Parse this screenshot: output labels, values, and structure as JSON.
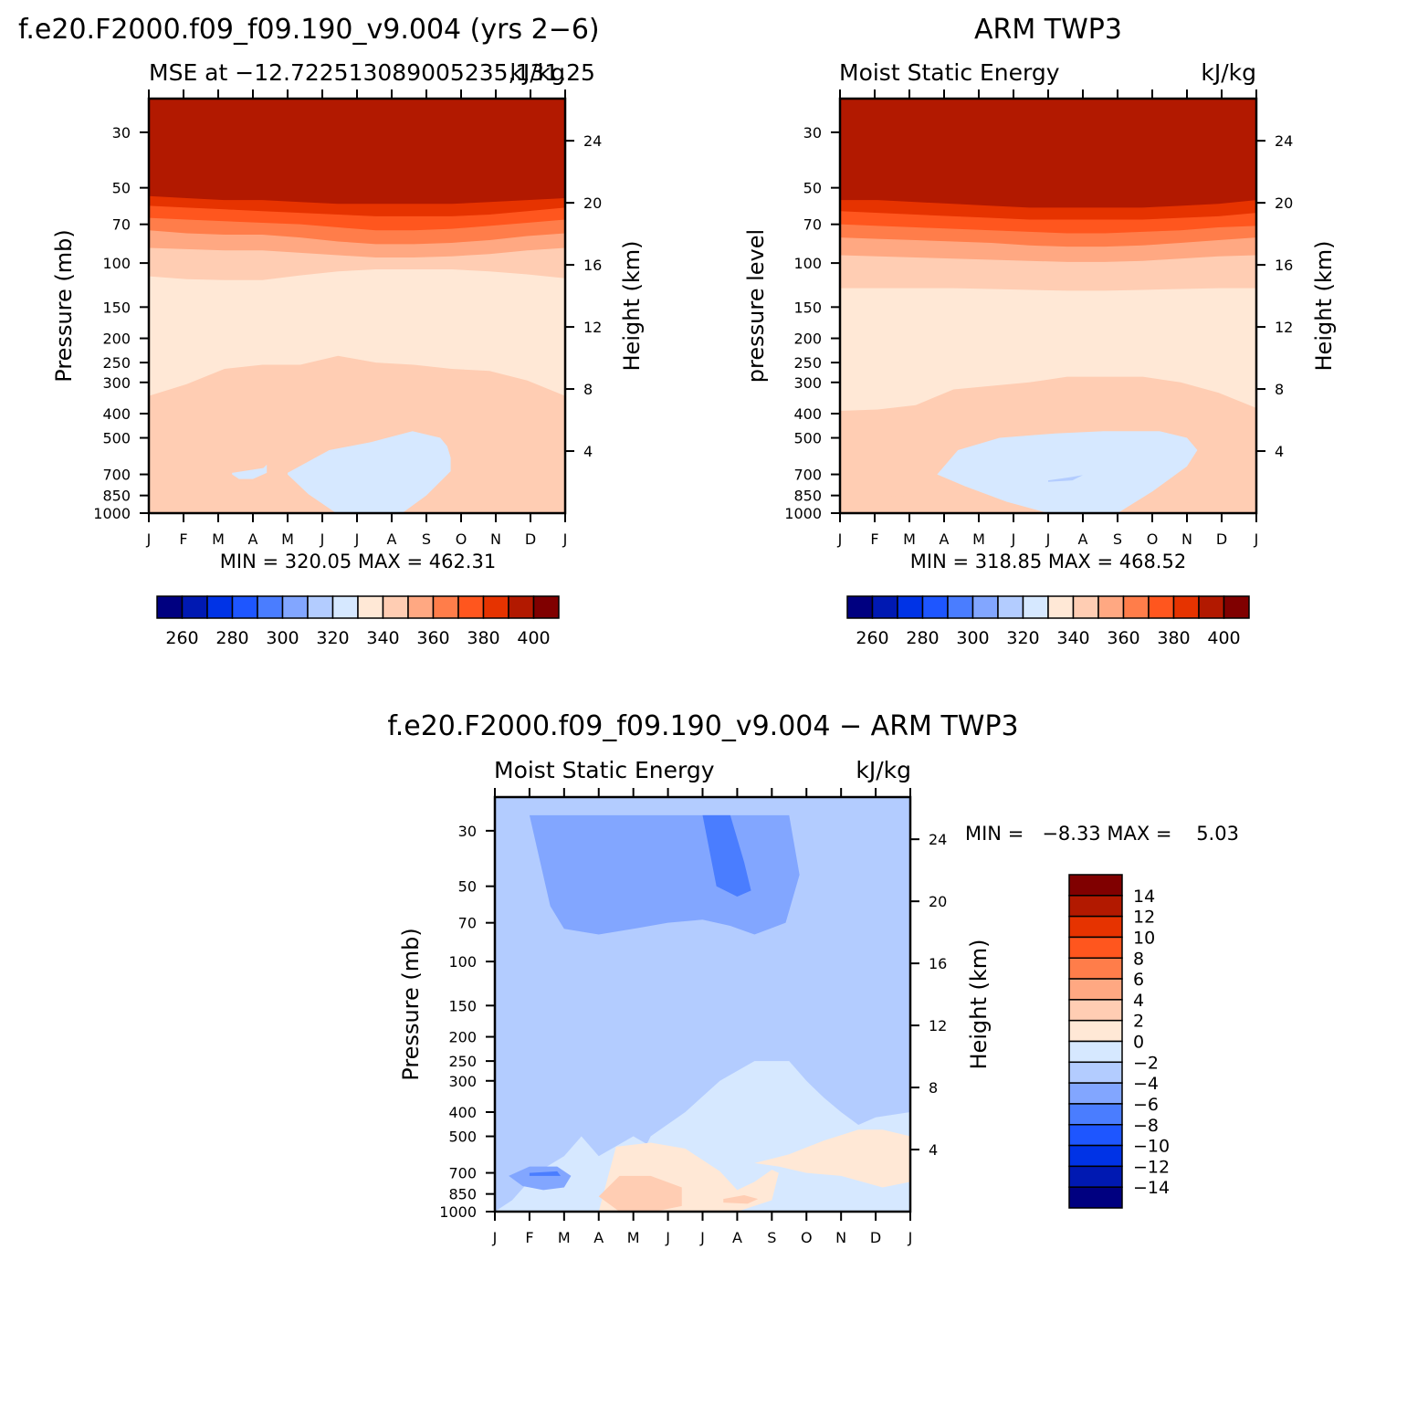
{
  "colors": {
    "abs_palette": [
      "#000080",
      "#0019b2",
      "#0033e6",
      "#1e56ff",
      "#4a7dff",
      "#82a6ff",
      "#b3ccff",
      "#d6e8ff",
      "#ffe8d6",
      "#ffcdb3",
      "#ffa882",
      "#ff7d4a",
      "#ff561e",
      "#e63300",
      "#b21900",
      "#800000"
    ],
    "diff_palette": [
      "#000080",
      "#0019b2",
      "#0033e6",
      "#1e56ff",
      "#4a7dff",
      "#82a6ff",
      "#b3ccff",
      "#d6e8ff",
      "#ffe8d6",
      "#ffcdb3",
      "#ffa882",
      "#ff7d4a",
      "#ff561e",
      "#e63300",
      "#b21900",
      "#800000"
    ]
  },
  "chart_data": [
    {
      "id": "model",
      "type": "heatmap",
      "suptitle": "f.e20.F2000.f09_f09.190_v9.004 (yrs 2−6)",
      "title_left": "MSE at −12.722513089005235,131.25",
      "title_right": "kJ/kg",
      "ylabel": "Pressure (mb)",
      "ylabel_right": "Height (km)",
      "xticks": [
        "J",
        "F",
        "M",
        "A",
        "M",
        "J",
        "J",
        "A",
        "S",
        "O",
        "N",
        "D",
        "J"
      ],
      "yticks": [
        "30",
        "50",
        "70",
        "100",
        "150",
        "200",
        "250",
        "300",
        "400",
        "500",
        "700",
        "850",
        "1000"
      ],
      "height_ticks": [
        "24",
        "20",
        "16",
        "12",
        "8",
        "4"
      ],
      "stats": "MIN = 320.05 MAX = 462.31",
      "levels": [
        250,
        260,
        270,
        280,
        290,
        300,
        310,
        320,
        330,
        340,
        350,
        360,
        370,
        380,
        390,
        400
      ],
      "level_labels": [
        "260",
        "280",
        "300",
        "320",
        "340",
        "360",
        "380",
        "400"
      ],
      "contours_p": [
        {
          "level": 330,
          "p": [
            340,
            305,
            265,
            255,
            255,
            235,
            250,
            255,
            265,
            270,
            295,
            340
          ]
        },
        {
          "level": 340,
          "p": [
            113,
            116,
            117,
            117,
            112,
            108,
            106,
            106,
            106,
            108,
            111,
            115
          ]
        },
        {
          "level": 350,
          "p": [
            87,
            88,
            89,
            89,
            91,
            93,
            95,
            95,
            94,
            92,
            89,
            87
          ]
        },
        {
          "level": 360,
          "p": [
            74,
            76,
            77,
            77,
            79,
            82,
            84,
            84,
            83,
            81,
            78,
            76
          ]
        },
        {
          "level": 370,
          "p": [
            66,
            67,
            68,
            69,
            70,
            72,
            74,
            74,
            73,
            71,
            69,
            67
          ]
        },
        {
          "level": 380,
          "p": [
            59,
            60,
            61,
            62,
            63,
            64,
            65,
            65,
            65,
            64,
            62,
            60
          ]
        },
        {
          "level": 390,
          "p": [
            54,
            55,
            56,
            56,
            57,
            58,
            58,
            58,
            58,
            57,
            56,
            55
          ]
        }
      ],
      "blobs": [
        {
          "level": 320,
          "x": [
            2.4,
            3.3,
            3.4,
            3.4,
            3.0,
            2.6,
            2.4
          ],
          "p": [
            690,
            660,
            640,
            690,
            730,
            730,
            700
          ]
        },
        {
          "level": 320,
          "x": [
            4.0,
            5.2,
            6.4,
            7.6,
            8.4,
            8.6,
            8.7,
            8.7,
            8.0,
            7.3,
            6.6,
            5.4,
            4.6,
            4.0
          ],
          "p": [
            690,
            560,
            520,
            470,
            500,
            540,
            600,
            680,
            850,
            1000,
            1000,
            1000,
            840,
            700
          ]
        },
        {
          "level": 340,
          "x": [
            0,
            1.0,
            2.0,
            3.0,
            3.5,
            3.5,
            0
          ],
          "p": [
            880,
            900,
            930,
            960,
            1000,
            1000,
            1000
          ]
        },
        {
          "level": 340,
          "x": [
            9.3,
            10.0,
            11.0,
            12.0,
            12.0,
            9.3
          ],
          "p": [
            1000,
            930,
            900,
            880,
            1000,
            1000
          ]
        }
      ]
    },
    {
      "id": "obs",
      "type": "heatmap",
      "suptitle": "ARM TWP3",
      "title_left": "Moist Static Energy",
      "title_right": "kJ/kg",
      "ylabel": "pressure level",
      "ylabel_right": "Height (km)",
      "xticks": [
        "J",
        "F",
        "M",
        "A",
        "M",
        "J",
        "J",
        "A",
        "S",
        "O",
        "N",
        "D",
        "J"
      ],
      "yticks": [
        "30",
        "50",
        "70",
        "100",
        "150",
        "200",
        "250",
        "300",
        "400",
        "500",
        "700",
        "850",
        "1000"
      ],
      "height_ticks": [
        "24",
        "20",
        "16",
        "12",
        "8",
        "4"
      ],
      "stats": "MIN = 318.85 MAX = 468.52",
      "levels": [
        250,
        260,
        270,
        280,
        290,
        300,
        310,
        320,
        330,
        340,
        350,
        360,
        370,
        380,
        390,
        400
      ],
      "level_labels": [
        "260",
        "280",
        "300",
        "320",
        "340",
        "360",
        "380",
        "400"
      ],
      "contours_p": [
        {
          "level": 330,
          "p": [
            390,
            385,
            370,
            320,
            310,
            300,
            285,
            285,
            285,
            300,
            330,
            380
          ]
        },
        {
          "level": 340,
          "p": [
            126,
            126,
            126,
            126,
            127,
            128,
            129,
            129,
            128,
            127,
            126,
            126
          ]
        },
        {
          "level": 350,
          "p": [
            93,
            94,
            95,
            96,
            97,
            98,
            99,
            99,
            98,
            96,
            94,
            93
          ]
        },
        {
          "level": 360,
          "p": [
            79,
            80,
            81,
            82,
            83,
            85,
            86,
            86,
            85,
            83,
            81,
            79
          ]
        },
        {
          "level": 370,
          "p": [
            70,
            71,
            72,
            73,
            74,
            75,
            76,
            76,
            75,
            74,
            72,
            71
          ]
        },
        {
          "level": 380,
          "p": [
            62,
            63,
            64,
            65,
            66,
            67,
            67,
            67,
            67,
            66,
            65,
            63
          ]
        },
        {
          "level": 390,
          "p": [
            56,
            56,
            57,
            58,
            59,
            60,
            60,
            60,
            60,
            59,
            58,
            56
          ]
        }
      ],
      "blobs": [
        {
          "level": 320,
          "x": [
            2.8,
            3.4,
            4.6,
            6.2,
            7.6,
            9.2,
            10.0,
            10.3,
            10.0,
            9.0,
            8.0,
            7.0,
            6.0,
            4.8,
            3.6,
            2.8
          ],
          "p": [
            700,
            560,
            500,
            480,
            470,
            470,
            500,
            560,
            650,
            820,
            1000,
            1000,
            1000,
            900,
            780,
            700
          ]
        },
        {
          "level": 310,
          "x": [
            6.0,
            6.6,
            7.0,
            6.7,
            6.0
          ],
          "p": [
            740,
            720,
            705,
            740,
            750
          ]
        },
        {
          "level": 340,
          "x": [
            0,
            1.0,
            2.0,
            3.0,
            3.0,
            0
          ],
          "p": [
            850,
            850,
            860,
            900,
            1000,
            1000
          ]
        },
        {
          "level": 340,
          "x": [
            8.6,
            9.5,
            10.5,
            11.5,
            12.0,
            12.0,
            8.6
          ],
          "p": [
            1000,
            930,
            890,
            860,
            860,
            1000,
            1000
          ]
        }
      ]
    },
    {
      "id": "diff",
      "type": "heatmap",
      "suptitle": "f.e20.F2000.f09_f09.190_v9.004 − ARM TWP3",
      "title_left": "Moist Static Energy",
      "title_right": "kJ/kg",
      "ylabel": "Pressure (mb)",
      "ylabel_right": "Height (km)",
      "xticks": [
        "J",
        "F",
        "M",
        "A",
        "M",
        "J",
        "J",
        "A",
        "S",
        "O",
        "N",
        "D",
        "J"
      ],
      "yticks": [
        "30",
        "50",
        "70",
        "100",
        "150",
        "200",
        "250",
        "300",
        "400",
        "500",
        "700",
        "850",
        "1000"
      ],
      "height_ticks": [
        "24",
        "20",
        "16",
        "12",
        "8",
        "4"
      ],
      "stats": "MIN =   −8.33 MAX =    5.03",
      "levels": [
        -16,
        -14,
        -12,
        -10,
        -8,
        -6,
        -4,
        -2,
        0,
        2,
        4,
        6,
        8,
        10,
        12,
        14
      ],
      "level_labels": [
        "14",
        "12",
        "10",
        "8",
        "6",
        "4",
        "2",
        "0",
        "−2",
        "−4",
        "−6",
        "−8",
        "−10",
        "−12",
        "−14"
      ],
      "blobs": [
        {
          "level": -4,
          "x": [
            0,
            0.5,
            1.2,
            2.0,
            2.5,
            3.0,
            4.0,
            5.0,
            6.0,
            7.0,
            8.0,
            9.0,
            9.8,
            10.5,
            11.0,
            12.0,
            12.0,
            11.0,
            10.0,
            9.0,
            8.0,
            7.0,
            6.0,
            5.0,
            4.0,
            3.0,
            2.0,
            1.0,
            0
          ],
          "p": [
            1000,
            900,
            700,
            600,
            500,
            600,
            500,
            600,
            700,
            800,
            850,
            800,
            700,
            600,
            500,
            400,
            22,
            22,
            22,
            22,
            22,
            22,
            22,
            22,
            22,
            22,
            22,
            22,
            22
          ]
        },
        {
          "level": -2,
          "x": [
            3.6,
            4.5,
            5.5,
            6.5,
            7.5,
            8.5,
            9.0,
            9.5,
            10.0,
            10.5,
            11.0,
            12.0,
            12.0,
            11.8,
            11.5,
            11.0,
            10.0,
            9.0,
            8.0,
            7.0,
            6.0,
            5.0,
            4.2,
            3.6
          ],
          "p": [
            900,
            500,
            400,
            300,
            250,
            250,
            300,
            350,
            400,
            450,
            420,
            400,
            800,
            870,
            900,
            950,
            1000,
            1000,
            1000,
            1000,
            1000,
            1000,
            1000,
            900
          ]
        },
        {
          "level": 0,
          "x": [
            3.0,
            3.5,
            4.5,
            5.5,
            6.5,
            7.0,
            7.5,
            8.0,
            8.2,
            8.0,
            7.0,
            6.0,
            5.0,
            4.0,
            3.2,
            3.0
          ],
          "p": [
            1000,
            550,
            530,
            560,
            690,
            820,
            760,
            680,
            700,
            900,
            1000,
            1000,
            1000,
            1000,
            1000,
            1000
          ]
        },
        {
          "level": 0,
          "x": [
            7.5,
            8.5,
            9.5,
            10.5,
            11.2,
            12.0,
            12.0,
            11.2,
            10.0,
            9.0,
            8.2,
            7.5
          ],
          "p": [
            640,
            590,
            520,
            470,
            470,
            500,
            760,
            800,
            720,
            700,
            660,
            640
          ]
        },
        {
          "level": 2,
          "x": [
            3.0,
            3.6,
            4.5,
            5.4,
            5.4,
            4.6,
            3.6,
            3.0
          ],
          "p": [
            870,
            720,
            720,
            800,
            950,
            1000,
            1000,
            870
          ]
        },
        {
          "level": 2,
          "x": [
            6.6,
            7.2,
            7.6,
            7.3,
            6.6
          ],
          "p": [
            890,
            860,
            890,
            930,
            920
          ]
        },
        {
          "level": -6,
          "x": [
            0.4,
            1.0,
            1.8,
            2.2,
            2.0,
            1.4,
            0.8,
            0.4
          ],
          "p": [
            720,
            660,
            660,
            720,
            800,
            820,
            790,
            720
          ]
        },
        {
          "level": -6,
          "x": [
            1.0,
            3.0,
            4.0,
            5.0,
            6.0,
            7.0,
            8.0,
            8.5,
            8.8,
            8.4,
            7.5,
            6.8,
            6.0,
            5.0,
            4.0,
            3.0,
            2.0,
            1.6,
            1.0
          ],
          "p": [
            26,
            26,
            26,
            26,
            26,
            26,
            26,
            26,
            45,
            70,
            78,
            72,
            68,
            70,
            74,
            78,
            74,
            60,
            26
          ]
        },
        {
          "level": -8,
          "x": [
            6.0,
            6.8,
            7.2,
            7.4,
            7.0,
            6.4,
            6.0
          ],
          "p": [
            26,
            26,
            40,
            52,
            55,
            50,
            26
          ]
        },
        {
          "level": -8,
          "x": [
            1.0,
            1.8,
            1.9,
            1.0
          ],
          "p": [
            700,
            690,
            720,
            720
          ]
        }
      ]
    }
  ]
}
